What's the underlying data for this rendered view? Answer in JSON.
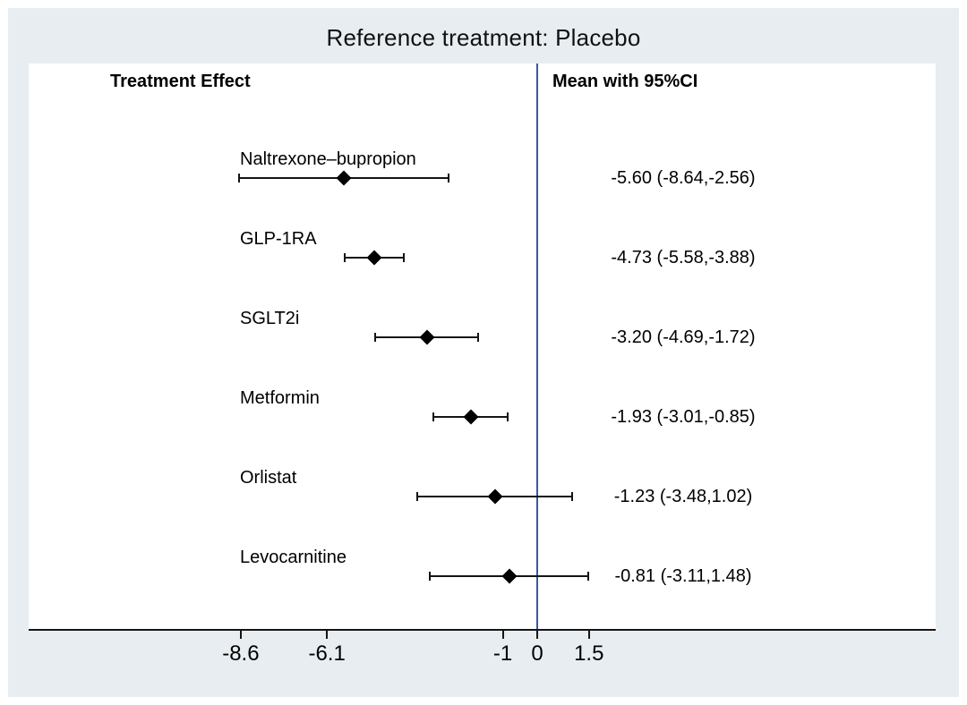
{
  "page": {
    "title": "Reference treatment: Placebo",
    "col_left_header": "Treatment Effect",
    "col_right_header": "Mean with 95%CI"
  },
  "colors": {
    "page_bg": "#e7edf1",
    "plot_bg": "#ffffff",
    "reference_line": "#3c55a5",
    "axis_and_markers": "#141414"
  },
  "chart_data": {
    "type": "forest",
    "title": "Reference treatment: Placebo",
    "reference_treatment": "Placebo",
    "reference_value": 0,
    "left_column_header": "Treatment Effect",
    "right_column_header": "Mean with 95%CI",
    "rows": [
      {
        "label": "Naltrexone–bupropion",
        "mean": -5.6,
        "ci_low": -8.64,
        "ci_high": -2.56,
        "display": "-5.60 (-8.64,-2.56)"
      },
      {
        "label": "GLP-1RA",
        "mean": -4.73,
        "ci_low": -5.58,
        "ci_high": -3.88,
        "display": "-4.73 (-5.58,-3.88)"
      },
      {
        "label": "SGLT2i",
        "mean": -3.2,
        "ci_low": -4.69,
        "ci_high": -1.72,
        "display": "-3.20 (-4.69,-1.72)"
      },
      {
        "label": "Metformin",
        "mean": -1.93,
        "ci_low": -3.01,
        "ci_high": -0.85,
        "display": "-1.93 (-3.01,-0.85)"
      },
      {
        "label": "Orlistat",
        "mean": -1.23,
        "ci_low": -3.48,
        "ci_high": 1.02,
        "display": "-1.23 (-3.48,1.02)"
      },
      {
        "label": "Levocarnitine",
        "mean": -0.81,
        "ci_low": -3.11,
        "ci_high": 1.48,
        "display": "-0.81 (-3.11,1.48)"
      }
    ],
    "x_ticks": [
      -8.6,
      -6.1,
      -1,
      0,
      1.5
    ],
    "x_tick_labels": [
      "-8.6",
      "-6.1",
      "-1",
      "0",
      "1.5"
    ],
    "marker": "diamond",
    "grid": false,
    "legend": "none"
  }
}
